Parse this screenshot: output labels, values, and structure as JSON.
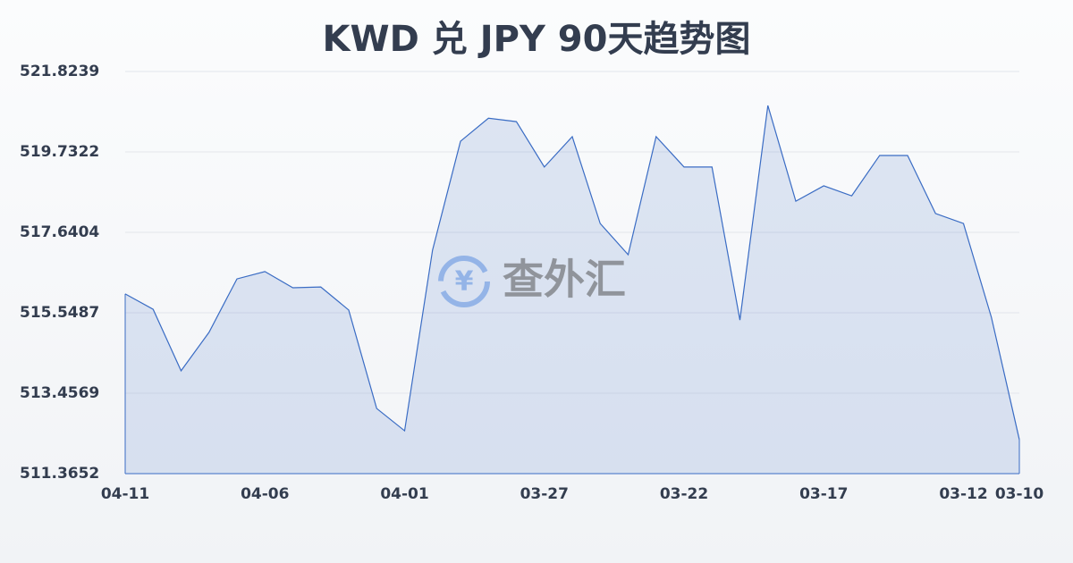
{
  "chart_data": {
    "type": "area",
    "title": "KWD 兑 JPY 90天趋势图",
    "watermark": "查外汇",
    "categories": [
      "04-11",
      null,
      null,
      null,
      null,
      "04-06",
      null,
      null,
      null,
      null,
      "04-01",
      null,
      null,
      null,
      null,
      "03-27",
      null,
      null,
      null,
      null,
      "03-22",
      null,
      null,
      null,
      null,
      "03-17",
      null,
      null,
      null,
      null,
      "03-12",
      null,
      "03-10"
    ],
    "values": [
      516.04,
      515.64,
      514.04,
      515.04,
      516.43,
      516.62,
      516.2,
      516.22,
      515.62,
      513.06,
      512.48,
      517.18,
      520.01,
      520.61,
      520.52,
      519.34,
      520.13,
      517.87,
      517.06,
      520.13,
      519.34,
      519.34,
      515.36,
      520.94,
      518.45,
      518.85,
      518.59,
      519.64,
      519.64,
      518.13,
      517.87,
      515.43,
      512.25
    ],
    "color": "#3a6cc4",
    "ylim": [
      511.3652,
      521.8239
    ],
    "yticks": [
      511.3652,
      513.4569,
      515.5487,
      517.6404,
      519.7322,
      521.8239
    ],
    "grid": true
  }
}
